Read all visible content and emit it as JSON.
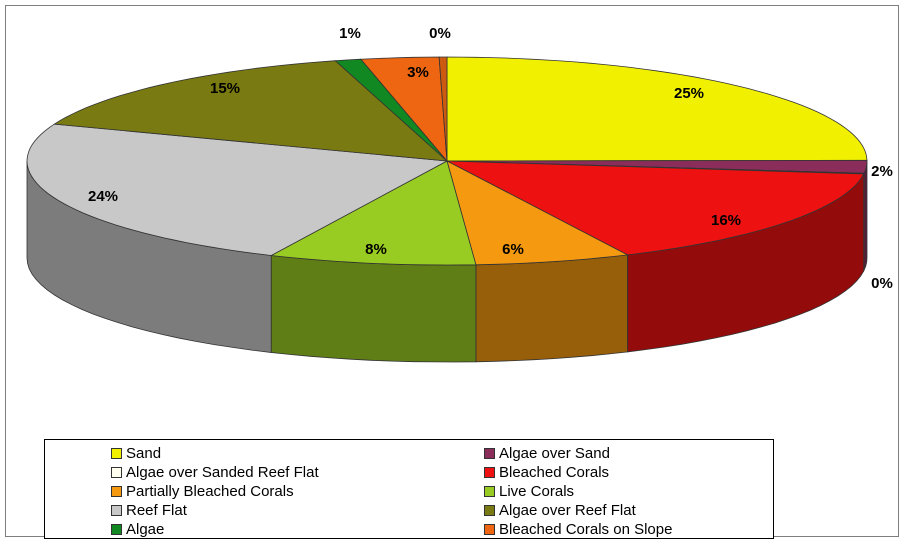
{
  "chart_data": {
    "type": "pie",
    "style": "3d-exploded-none",
    "title": "",
    "slices": [
      {
        "label": "Sand",
        "value": 25,
        "display": "25%",
        "color": "#f0f000"
      },
      {
        "label": "Algae over Sand",
        "value": 2,
        "display": "2%",
        "color": "#8b2d5a"
      },
      {
        "label": "Algae over Sanded Reef Flat",
        "value": 0.1,
        "display": "0%",
        "color": "#fffff0"
      },
      {
        "label": "Bleached Corals",
        "value": 16,
        "display": "16%",
        "color": "#ee1111"
      },
      {
        "label": "Partially Bleached Corals",
        "value": 6,
        "display": "6%",
        "color": "#f59a10"
      },
      {
        "label": "Live Corals",
        "value": 8,
        "display": "8%",
        "color": "#99cc22"
      },
      {
        "label": "Reef Flat",
        "value": 24,
        "display": "24%",
        "color": "#c8c8c8"
      },
      {
        "label": "Algae over Reef Flat",
        "value": 15,
        "display": "15%",
        "color": "#7a7a12"
      },
      {
        "label": "Algae",
        "value": 1,
        "display": "1%",
        "color": "#118822"
      },
      {
        "label": "Bleached Corals on Slope",
        "value": 3,
        "display": "3%",
        "color": "#ee6611"
      },
      {
        "label": "",
        "value": 0.3,
        "display": "0%",
        "color": "#cc5a10"
      }
    ],
    "legend_position": "bottom"
  }
}
